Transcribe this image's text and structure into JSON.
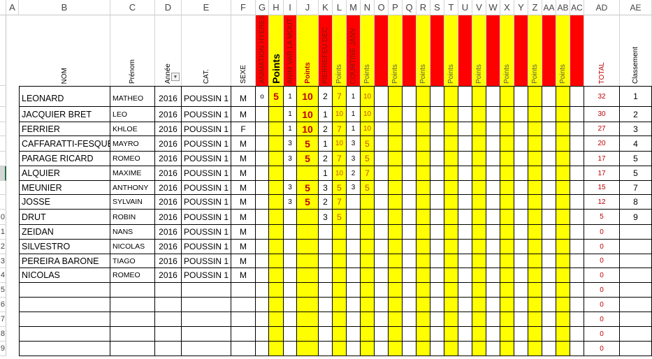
{
  "column_letters": [
    "A",
    "B",
    "C",
    "D",
    "E",
    "F",
    "G",
    "H",
    "I",
    "J",
    "K",
    "L",
    "M",
    "N",
    "O",
    "P",
    "Q",
    "R",
    "S",
    "T",
    "U",
    "V",
    "W",
    "X",
    "Y",
    "Z",
    "AA",
    "AB",
    "AC",
    "AD",
    "AE"
  ],
  "row_numbers": [
    "",
    "",
    "",
    "",
    "",
    "",
    "",
    "",
    "0",
    "1",
    "2",
    "3",
    "4",
    "5",
    "6",
    "7",
    "8",
    "9"
  ],
  "selected_row_index": 5,
  "colors": {
    "event_header": "#ff0000",
    "points_column": "#ffff00",
    "total_text": "#c00000",
    "points_text": "#c00000",
    "small_points_text": "#c05000"
  },
  "headers": {
    "B": "NOM",
    "C": "Prénom",
    "D": "Année",
    "E": "CAT.",
    "F": "SEXE",
    "G": "ANIMATION HYERES",
    "H": "Points",
    "I": "ANIM VAR LA MOUT",
    "J": "Points",
    "K": "PIERREFEU DEC",
    "L": "Points",
    "M": "COURTINE JANV",
    "N": "Points",
    "O": "",
    "P": "Points",
    "Q": "",
    "R": "Points",
    "S": "",
    "T": "Points",
    "U": "",
    "V": "Points",
    "W": "",
    "X": "Points",
    "Y": "",
    "Z": "Points",
    "AA": "",
    "AB": "Points",
    "AC": "",
    "AD": "TOTAL",
    "AE": "Classement"
  },
  "filter_icon": "dropdown-arrow-icon",
  "rows": [
    {
      "nom": "LEONARD",
      "prenom": "MATHEO",
      "annee": "2016",
      "cat": "POUSSIN 1",
      "sexe": "M",
      "G": "o",
      "H": "5",
      "I": "1",
      "J": "10",
      "K": "2",
      "L": "7",
      "M": "1",
      "N": "10",
      "total": "32",
      "rank": "1"
    },
    {
      "nom": "JACQUIER BRET",
      "prenom": "LEO",
      "annee": "2016",
      "cat": "POUSSIN 1",
      "sexe": "M",
      "I": "1",
      "J": "10",
      "K": "1",
      "L": "10",
      "M": "1",
      "N": "10",
      "total": "30",
      "rank": "2"
    },
    {
      "nom": "FERRIER",
      "prenom": "KHLOE",
      "annee": "2016",
      "cat": "POUSSIN 1",
      "sexe": "F",
      "I": "1",
      "J": "10",
      "K": "2",
      "L": "7",
      "M": "1",
      "N": "10",
      "total": "27",
      "rank": "3"
    },
    {
      "nom": "CAFFARATTI-FESQUET",
      "prenom": "MAYRO",
      "annee": "2016",
      "cat": "POUSSIN 1",
      "sexe": "M",
      "I": "3",
      "J": "5",
      "K": "1",
      "L": "10",
      "M": "3",
      "N": "5",
      "total": "20",
      "rank": "4"
    },
    {
      "nom": "PARAGE RICARD",
      "prenom": "ROMEO",
      "annee": "2016",
      "cat": "POUSSIN 1",
      "sexe": "M",
      "I": "3",
      "J": "5",
      "K": "2",
      "L": "7",
      "M": "3",
      "N": "5",
      "total": "17",
      "rank": "5"
    },
    {
      "nom": "ALQUIER",
      "prenom": "MAXIME",
      "annee": "2016",
      "cat": "POUSSIN 1",
      "sexe": "M",
      "K": "1",
      "L": "10",
      "M": "2",
      "N": "7",
      "total": "17",
      "rank": "5"
    },
    {
      "nom": "MEUNIER",
      "prenom": "ANTHONY",
      "annee": "2016",
      "cat": "POUSSIN 1",
      "sexe": "M",
      "I": "3",
      "J": "5",
      "K": "3",
      "L": "5",
      "M": "3",
      "N": "5",
      "total": "15",
      "rank": "7"
    },
    {
      "nom": "JOSSE",
      "prenom": "SYLVAIN",
      "annee": "2016",
      "cat": "POUSSIN 1",
      "sexe": "M",
      "I": "3",
      "J": "5",
      "K": "2",
      "L": "7",
      "total": "12",
      "rank": "8"
    },
    {
      "nom": "DRUT",
      "prenom": "ROBIN",
      "annee": "2016",
      "cat": "POUSSIN 1",
      "sexe": "M",
      "K": "3",
      "L": "5",
      "total": "5",
      "rank": "9"
    },
    {
      "nom": "ZEIDAN",
      "prenom": "NANS",
      "annee": "2016",
      "cat": "POUSSIN 1",
      "sexe": "M",
      "total": "0"
    },
    {
      "nom": "SILVESTRO",
      "prenom": "NICOLAS",
      "annee": "2016",
      "cat": "POUSSIN 1",
      "sexe": "M",
      "total": "0"
    },
    {
      "nom": "PEREIRA BARONE",
      "prenom": "TIAGO",
      "annee": "2016",
      "cat": "POUSSIN 1",
      "sexe": "M",
      "total": "0"
    },
    {
      "nom": "NICOLAS",
      "prenom": "ROMEO",
      "annee": "2016",
      "cat": "POUSSIN 1",
      "sexe": "M",
      "total": "0"
    },
    {
      "total": "0"
    },
    {
      "total": "0"
    },
    {
      "total": "0"
    },
    {
      "total": "0"
    },
    {
      "total": "0"
    }
  ]
}
